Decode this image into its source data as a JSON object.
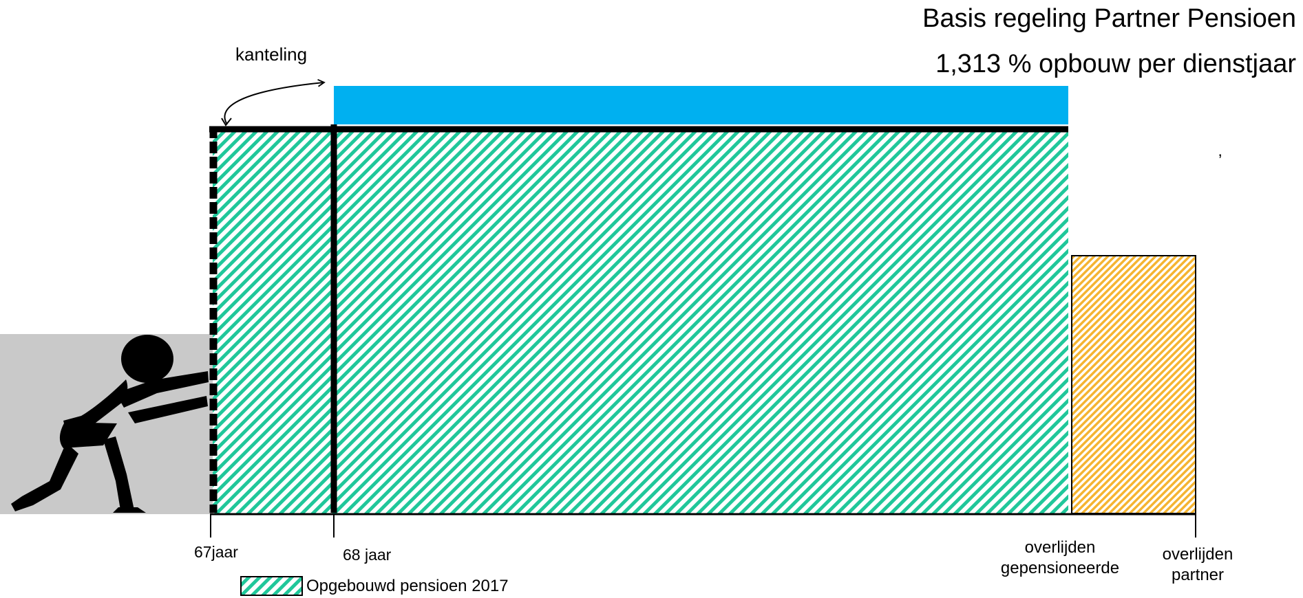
{
  "title": {
    "line1": "Basis regeling Partner Pensioen",
    "line2": "1,313 % opbouw per dienstjaar"
  },
  "stray_mark": "’",
  "annotation": {
    "kanteling": "kanteling"
  },
  "axis_labels": {
    "age_67": "67jaar",
    "age_68": "68 jaar",
    "overlijden_gepensioneerde_line1": "overlijden",
    "overlijden_gepensioneerde_line2": "gepensioneerde",
    "overlijden_partner_line1": "overlijden",
    "overlijden_partner_line2": "partner"
  },
  "legend": {
    "opgebouwd": "Opgebouwd pensioen 2017"
  },
  "colors": {
    "green_hatch": "#20c79a",
    "blue_band": "#00b0f0",
    "orange_hatch": "#f5b431",
    "grey_panel": "#c9c9c9",
    "ink": "#000000"
  },
  "icons": {
    "pushing_figure": "person-pushing-icon"
  }
}
